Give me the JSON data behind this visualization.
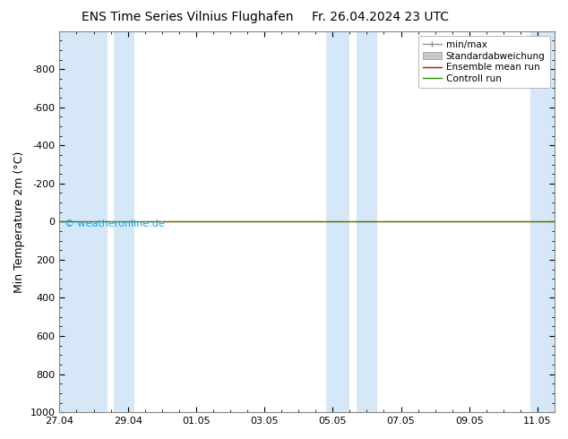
{
  "title": "ENS Time Series Vilnius Flughafen",
  "title2": "Fr. 26.04.2024 23 UTC",
  "ylabel": "Min Temperature 2m (°C)",
  "watermark": "© weatheronline.de",
  "ylim": [
    -1000,
    1000
  ],
  "yticks": [
    -800,
    -600,
    -400,
    -200,
    0,
    200,
    400,
    600,
    800,
    1000
  ],
  "xtick_labels": [
    "27.04",
    "29.04",
    "01.05",
    "03.05",
    "05.05",
    "07.05",
    "09.05",
    "11.05"
  ],
  "xtick_positions": [
    0,
    2,
    4,
    6,
    8,
    10,
    12,
    14
  ],
  "shaded_band_color": "#d6e8f7",
  "bg_color": "#ffffff",
  "control_run_color": "#2e8b00",
  "ensemble_mean_color": "#cc0000",
  "legend_labels": [
    "min/max",
    "Standardabweichung",
    "Ensemble mean run",
    "Controll run"
  ],
  "legend_line_color": "#909090",
  "legend_fill_color": "#c8c8c8",
  "tick_fontsize": 8,
  "label_fontsize": 9,
  "title_fontsize": 10,
  "watermark_color": "#00aaff"
}
